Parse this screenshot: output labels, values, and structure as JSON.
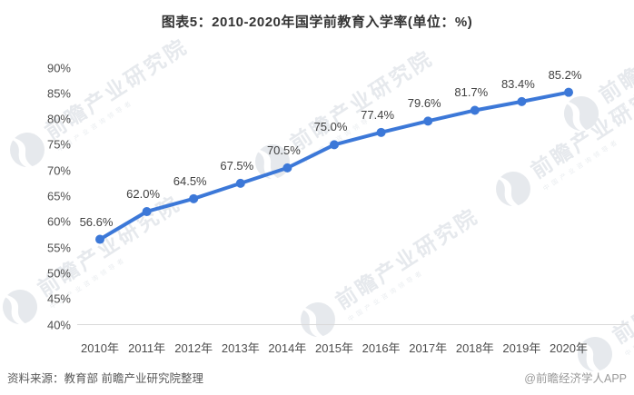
{
  "page": {
    "title": "图表5：2010-2020年国学前教育入学率(单位：%)"
  },
  "chart_data": {
    "type": "line",
    "title": "图表5：2010-2020年国学前教育入学率(单位：%)",
    "categories": [
      "2010年",
      "2011年",
      "2012年",
      "2013年",
      "2014年",
      "2015年",
      "2016年",
      "2017年",
      "2018年",
      "2019年",
      "2020年"
    ],
    "values": [
      56.6,
      62.0,
      64.5,
      67.5,
      70.5,
      75.0,
      77.4,
      79.6,
      81.7,
      83.4,
      85.2
    ],
    "data_labels": [
      "56.6%",
      "62.0%",
      "64.5%",
      "67.5%",
      "70.5%",
      "75.0%",
      "77.4%",
      "79.6%",
      "81.7%",
      "83.4%",
      "85.2%"
    ],
    "xlabel": "",
    "ylabel": "",
    "ylim": [
      40,
      90
    ],
    "ytick_step": 5,
    "ytick_values": [
      90,
      85,
      80,
      75,
      70,
      65,
      60,
      55,
      50,
      45,
      40
    ],
    "ytick_labels": [
      "90%",
      "85%",
      "80%",
      "75%",
      "70%",
      "65%",
      "60%",
      "55%",
      "50%",
      "45%",
      "40%"
    ],
    "grid": false,
    "legend": "none",
    "line_color": "#3C78D8",
    "marker": "circle"
  },
  "footer": {
    "source": "资料来源：教育部 前瞻产业研究院整理",
    "credit": "@前瞻经济学人APP"
  },
  "watermark": {
    "brand": "前瞻产业研究院",
    "tagline": "中国产业咨询领导者"
  }
}
